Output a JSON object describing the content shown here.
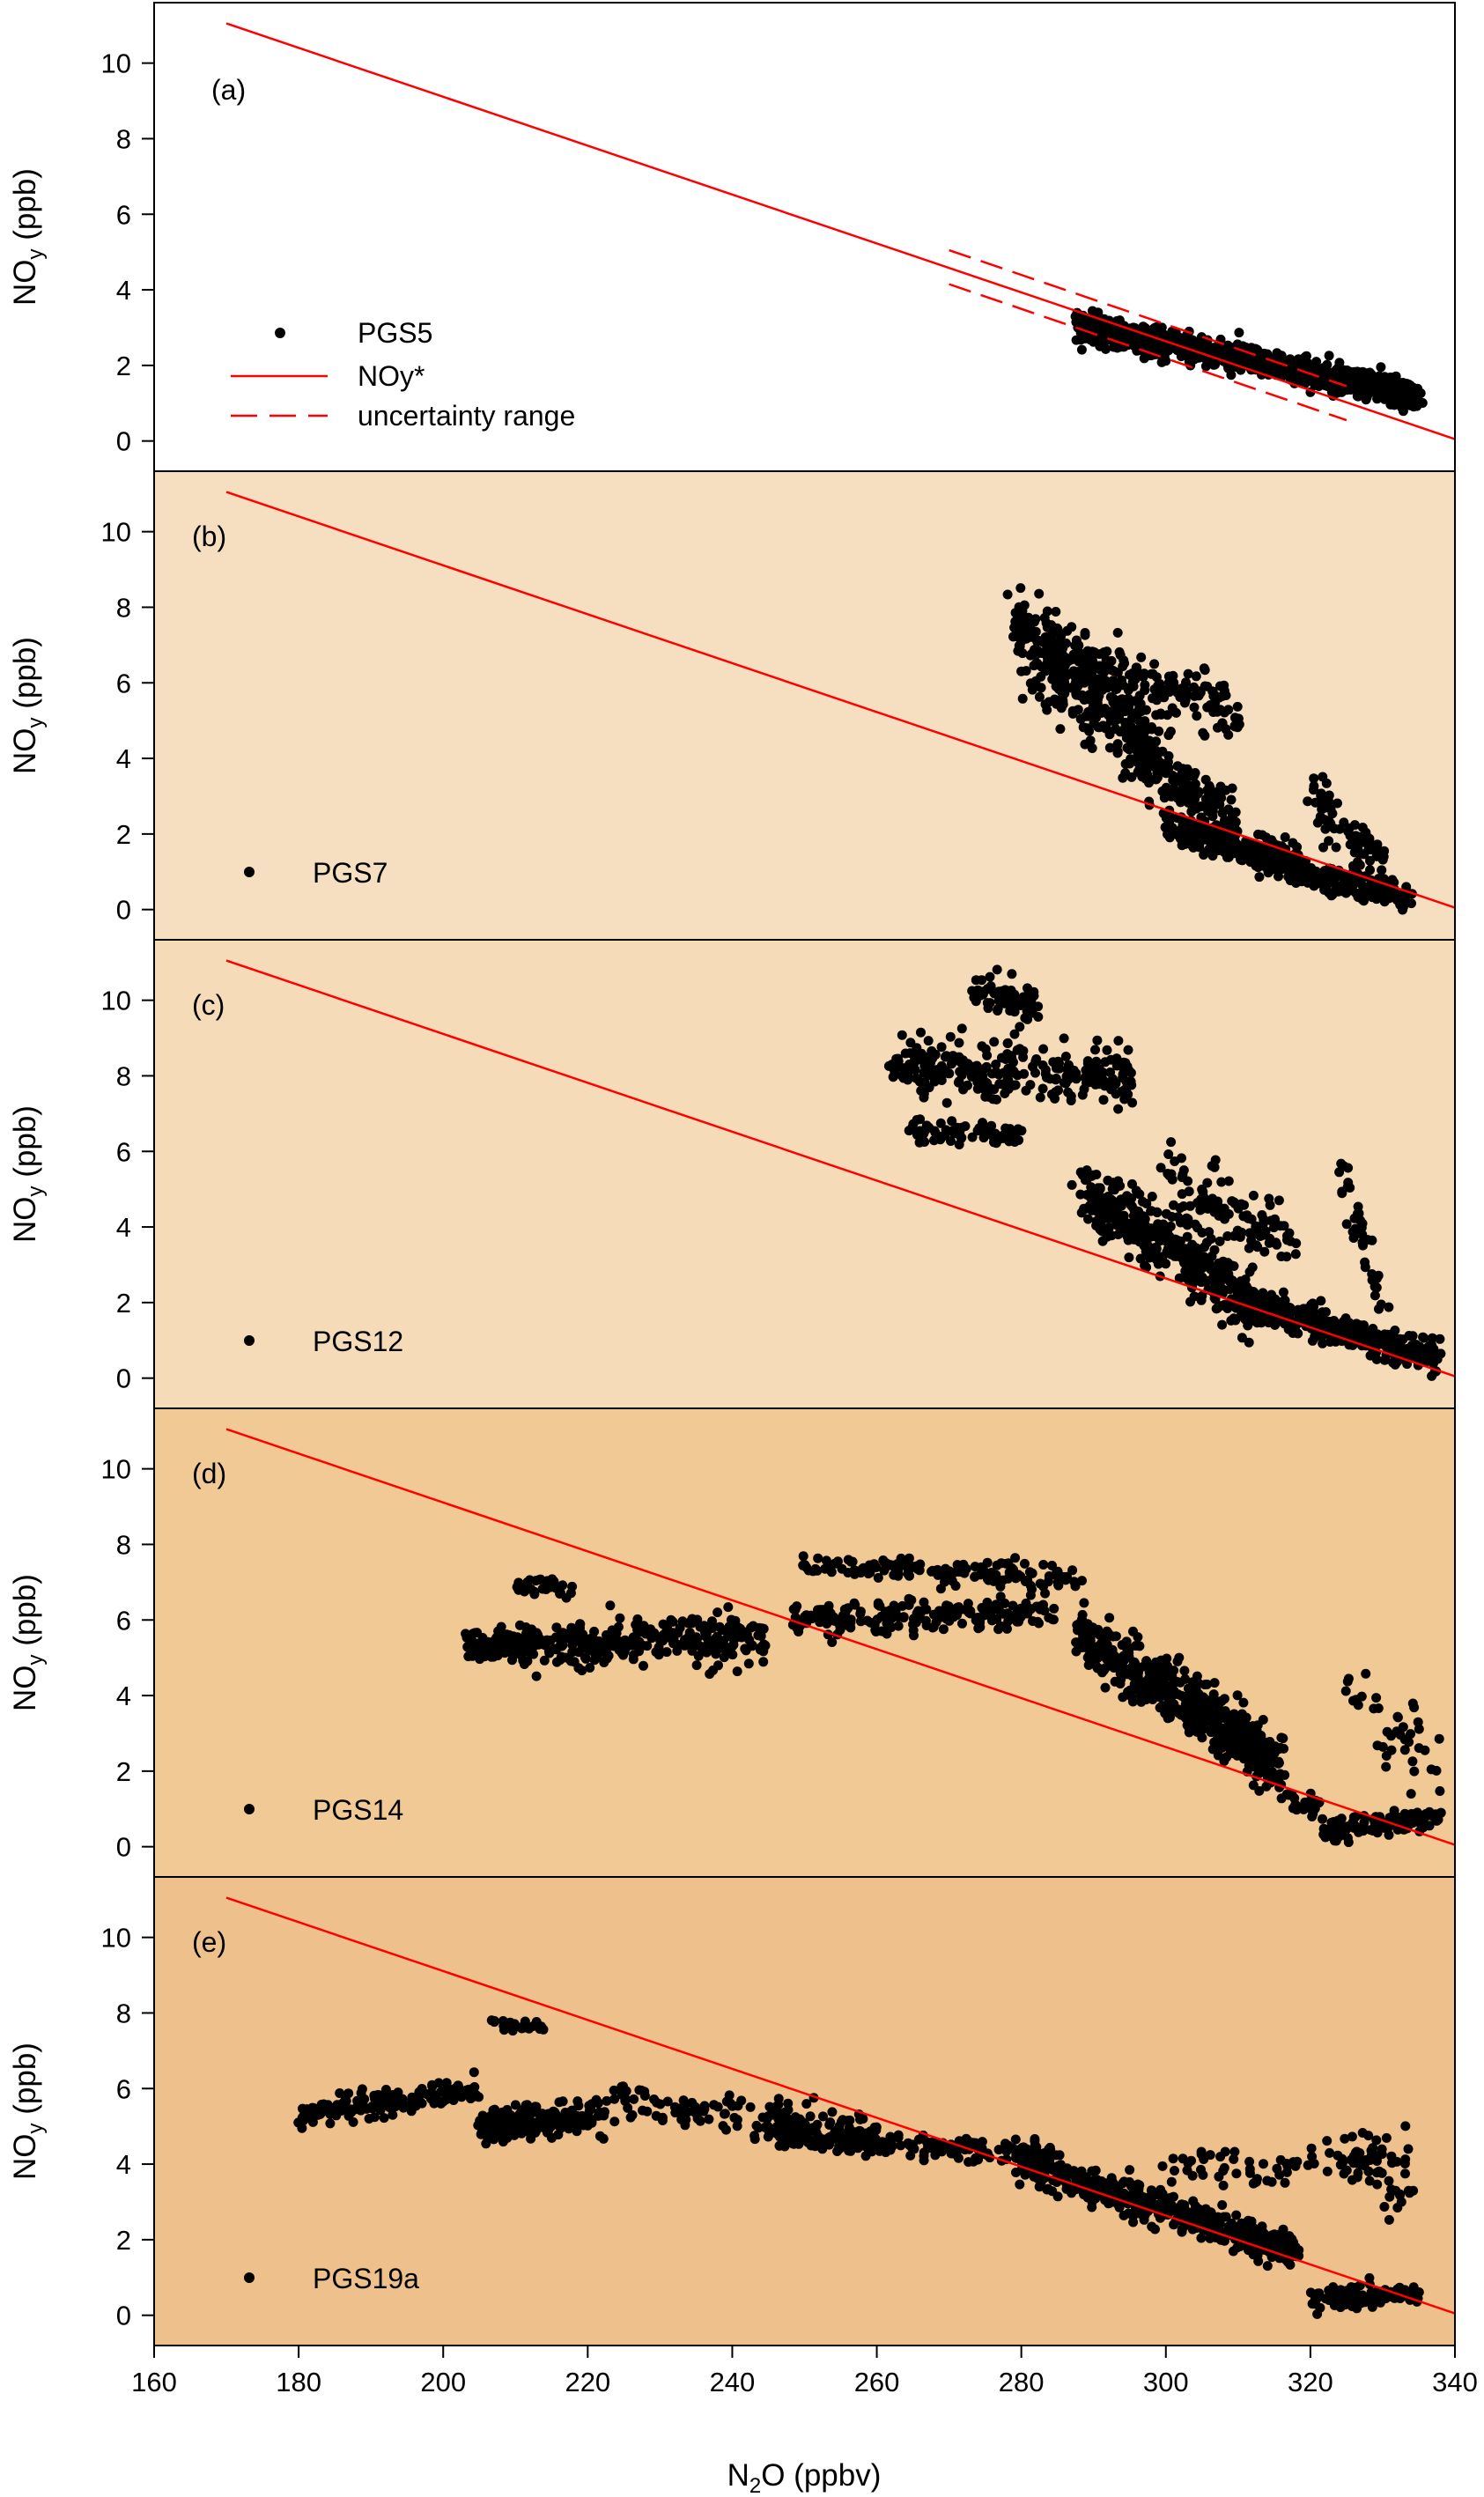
{
  "chart_data": {
    "type": "scatter",
    "x_axis": {
      "label_main": "N",
      "label_sub": "2",
      "label_rest": "O (ppbv)",
      "range": [
        160,
        340
      ],
      "ticks": [
        "160",
        "180",
        "200",
        "220",
        "240",
        "260",
        "280",
        "300",
        "320",
        "340"
      ]
    },
    "y_axis": {
      "label_main": "NO",
      "label_sub": "y",
      "label_rest": " (ppb)",
      "range": [
        -0.8,
        11.6
      ],
      "ticks": [
        "0",
        "2",
        "4",
        "6",
        "8",
        "10"
      ]
    },
    "reference_line": {
      "name": "NOy*",
      "color": "#ff0000",
      "x": [
        170,
        340
      ],
      "y": [
        11.05,
        0.05
      ]
    },
    "uncertainty_range": {
      "name": "uncertainty range",
      "color": "#ff0000",
      "upper": {
        "x": [
          270,
          325
        ],
        "y": [
          5.05,
          1.45
        ]
      },
      "lower": {
        "x": [
          270,
          325
        ],
        "y": [
          4.15,
          0.55
        ]
      }
    },
    "legend": {
      "points_label": "PGS5",
      "line_label": "NOy*",
      "dashed_label": "uncertainty range"
    },
    "panels": [
      {
        "label": "(a)",
        "series": "PGS5",
        "background": "#ffffff",
        "clusters": [
          {
            "x": [
              288,
              335
            ],
            "line": [
              3.1,
              1.2
            ],
            "spread": 0.35,
            "n": 900
          },
          {
            "x": [
              288,
              300
            ],
            "line": [
              3.0,
              2.4
            ],
            "spread": 0.3,
            "n": 150
          }
        ]
      },
      {
        "label": "(b)",
        "series": "PGS7",
        "background": "#f6dfc0",
        "clusters": [
          {
            "x": [
              279,
              298
            ],
            "line": [
              7.4,
              4.2
            ],
            "spread": 1.2,
            "n": 330
          },
          {
            "x": [
              284,
              310
            ],
            "line": [
              6.6,
              5.4
            ],
            "spread": 0.9,
            "n": 180
          },
          {
            "x": [
              296,
              310
            ],
            "line": [
              4.2,
              2.2
            ],
            "spread": 0.8,
            "n": 170
          },
          {
            "x": [
              300,
              318
            ],
            "line": [
              2.2,
              1.3
            ],
            "spread": 0.45,
            "n": 200
          },
          {
            "x": [
              312,
              334
            ],
            "line": [
              1.3,
              0.3
            ],
            "spread": 0.35,
            "n": 220
          },
          {
            "x": [
              320,
              330
            ],
            "line": [
              3.0,
              1.2
            ],
            "spread": 0.8,
            "n": 70
          }
        ]
      },
      {
        "label": "(c)",
        "series": "PGS12",
        "background": "#f5dbb8",
        "clusters": [
          {
            "x": [
              262,
              296
            ],
            "line": [
              8.3,
              8.0
            ],
            "spread": 0.7,
            "n": 270
          },
          {
            "x": [
              273,
              282
            ],
            "line": [
              10.3,
              9.8
            ],
            "spread": 0.5,
            "n": 70
          },
          {
            "x": [
              265,
              280
            ],
            "line": [
              6.5,
              6.4
            ],
            "spread": 0.3,
            "n": 70
          },
          {
            "x": [
              288,
              312
            ],
            "line": [
              5.0,
              2.0
            ],
            "spread": 0.8,
            "n": 380
          },
          {
            "x": [
              300,
              318
            ],
            "line": [
              5.2,
              3.6
            ],
            "spread": 0.9,
            "n": 110
          },
          {
            "x": [
              310,
              338
            ],
            "line": [
              2.0,
              0.5
            ],
            "spread": 0.45,
            "n": 350
          },
          {
            "x": [
              324,
              330
            ],
            "line": [
              5.6,
              2.0
            ],
            "spread": 0.7,
            "n": 40
          }
        ]
      },
      {
        "label": "(d)",
        "series": "PGS14",
        "background": "#f1c995",
        "clusters": [
          {
            "x": [
              203,
              245
            ],
            "line": [
              5.3,
              5.5
            ],
            "spread": 0.6,
            "n": 360
          },
          {
            "x": [
              210,
              218
            ],
            "line": [
              7.0,
              6.8
            ],
            "spread": 0.3,
            "n": 40
          },
          {
            "x": [
              248,
              285
            ],
            "line": [
              6.0,
              6.2
            ],
            "spread": 0.4,
            "n": 200
          },
          {
            "x": [
              250,
              288
            ],
            "line": [
              7.5,
              7.1
            ],
            "spread": 0.35,
            "n": 150
          },
          {
            "x": [
              288,
              316
            ],
            "line": [
              5.6,
              2.2
            ],
            "spread": 0.75,
            "n": 480
          },
          {
            "x": [
              315,
              322
            ],
            "line": [
              1.5,
              0.9
            ],
            "spread": 0.35,
            "n": 30
          },
          {
            "x": [
              322,
              338
            ],
            "line": [
              0.4,
              0.8
            ],
            "spread": 0.3,
            "n": 110
          },
          {
            "x": [
              325,
              338
            ],
            "line": [
              3.8,
              2.2
            ],
            "spread": 1.1,
            "n": 40
          }
        ]
      },
      {
        "label": "(e)",
        "series": "PGS19a",
        "background": "#edc08c",
        "clusters": [
          {
            "x": [
              180,
              205
            ],
            "line": [
              5.3,
              6.0
            ],
            "spread": 0.35,
            "n": 160
          },
          {
            "x": [
              205,
              222
            ],
            "line": [
              5.0,
              5.3
            ],
            "spread": 0.5,
            "n": 180
          },
          {
            "x": [
              207,
              214
            ],
            "line": [
              7.7,
              7.6
            ],
            "spread": 0.15,
            "n": 25
          },
          {
            "x": [
              222,
              260
            ],
            "line": [
              5.7,
              4.8
            ],
            "spread": 0.5,
            "n": 140
          },
          {
            "x": [
              245,
              285
            ],
            "line": [
              4.8,
              4.2
            ],
            "spread": 0.3,
            "n": 220
          },
          {
            "x": [
              280,
              318
            ],
            "line": [
              4.0,
              1.7
            ],
            "spread": 0.45,
            "n": 480
          },
          {
            "x": [
              300,
              334
            ],
            "line": [
              3.8,
              4.3
            ],
            "spread": 0.6,
            "n": 80
          },
          {
            "x": [
              320,
              335
            ],
            "line": [
              0.4,
              0.6
            ],
            "spread": 0.25,
            "n": 110
          },
          {
            "x": [
              326,
              334
            ],
            "line": [
              4.2,
              3.2
            ],
            "spread": 0.7,
            "n": 40
          }
        ]
      }
    ]
  }
}
